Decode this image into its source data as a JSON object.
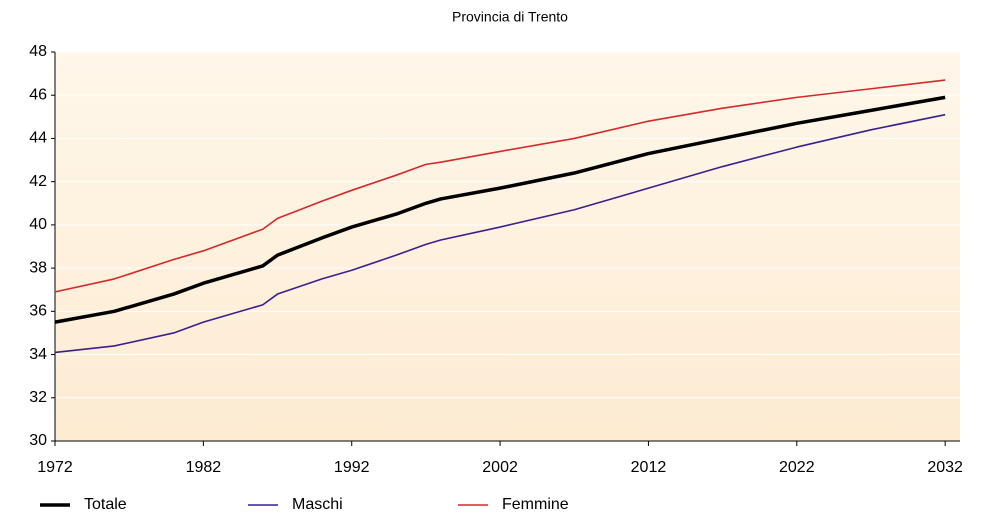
{
  "chart_data": {
    "type": "line",
    "title": "Provincia di Trento",
    "x": [
      1972,
      1976,
      1980,
      1982,
      1986,
      1987,
      1990,
      1992,
      1995,
      1997,
      1998,
      2002,
      2007,
      2012,
      2017,
      2022,
      2027,
      2032
    ],
    "series": [
      {
        "name": "Totale",
        "color": "#000000",
        "values": [
          35.5,
          36.0,
          36.8,
          37.3,
          38.1,
          38.6,
          39.4,
          39.9,
          40.5,
          41.0,
          41.2,
          41.7,
          42.4,
          43.3,
          44.0,
          44.7,
          45.3,
          45.9
        ]
      },
      {
        "name": "Maschi",
        "color": "#3b1f8f",
        "values": [
          34.1,
          34.4,
          35.0,
          35.5,
          36.3,
          36.8,
          37.5,
          37.9,
          38.6,
          39.1,
          39.3,
          39.9,
          40.7,
          41.7,
          42.7,
          43.6,
          44.4,
          45.1
        ]
      },
      {
        "name": "Femmine",
        "color": "#d42a2a",
        "values": [
          36.9,
          37.5,
          38.4,
          38.8,
          39.8,
          40.3,
          41.1,
          41.6,
          42.3,
          42.8,
          42.9,
          43.4,
          44.0,
          44.8,
          45.4,
          45.9,
          46.3,
          46.7
        ]
      }
    ],
    "xlim": [
      1972,
      2033
    ],
    "xticks": [
      1972,
      1982,
      1992,
      2002,
      2012,
      2022,
      2032
    ],
    "ylim": [
      30,
      48
    ],
    "yticks": [
      30,
      32,
      34,
      36,
      38,
      40,
      42,
      44,
      46,
      48
    ],
    "grid": true,
    "legend": "bottom"
  }
}
